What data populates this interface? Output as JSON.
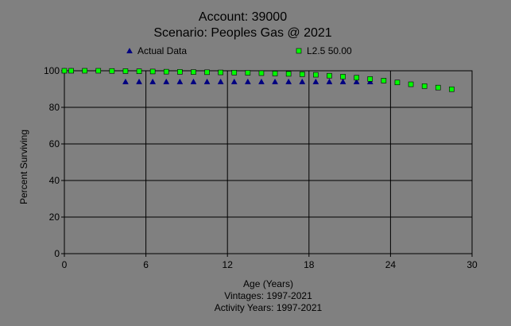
{
  "chart_data": {
    "type": "scatter",
    "title": "Account: 39000",
    "subtitle": "Scenario: Peoples Gas @ 2021",
    "xlabel": "Age (Years)",
    "ylabel": "Percent Surviving",
    "footer_lines": [
      "Vintages: 1997-2021",
      "Activity Years: 1997-2021"
    ],
    "xlim": [
      0,
      30
    ],
    "ylim": [
      0,
      100
    ],
    "xticks": [
      0,
      6,
      12,
      18,
      24,
      30
    ],
    "yticks": [
      0,
      20,
      40,
      60,
      80,
      100
    ],
    "grid": true,
    "legend_position": "top",
    "series": [
      {
        "name": "Actual Data",
        "marker": "triangle",
        "color": "#000080",
        "x": [
          0,
          0.5,
          4.5,
          5.5,
          6.5,
          7.5,
          8.5,
          9.5,
          10.5,
          11.5,
          12.5,
          13.5,
          14.5,
          15.5,
          16.5,
          17.5,
          18.5,
          19.5,
          20.5,
          21.5,
          22.5
        ],
        "y": [
          100,
          100,
          94,
          94,
          94,
          94,
          94,
          94,
          94,
          94,
          94,
          94,
          94,
          94,
          94,
          94,
          94,
          94,
          94,
          94,
          94
        ]
      },
      {
        "name": "L2.5 50.00",
        "marker": "square",
        "color": "#00ff00",
        "x": [
          0,
          0.5,
          1.5,
          2.5,
          3.5,
          4.5,
          5.5,
          6.5,
          7.5,
          8.5,
          9.5,
          10.5,
          11.5,
          12.5,
          13.5,
          14.5,
          15.5,
          16.5,
          17.5,
          18.5,
          19.5,
          20.5,
          21.5,
          22.5,
          23.5,
          24.5,
          25.5,
          26.5,
          27.5,
          28.5
        ],
        "y": [
          100,
          100,
          100,
          100,
          99.9,
          99.8,
          99.7,
          99.6,
          99.5,
          99.4,
          99.3,
          99.2,
          99.1,
          99.0,
          98.9,
          98.7,
          98.5,
          98.3,
          98.1,
          97.8,
          97.3,
          96.8,
          96.2,
          95.5,
          94.6,
          93.6,
          92.6,
          91.6,
          90.8,
          89.9
        ]
      }
    ]
  }
}
